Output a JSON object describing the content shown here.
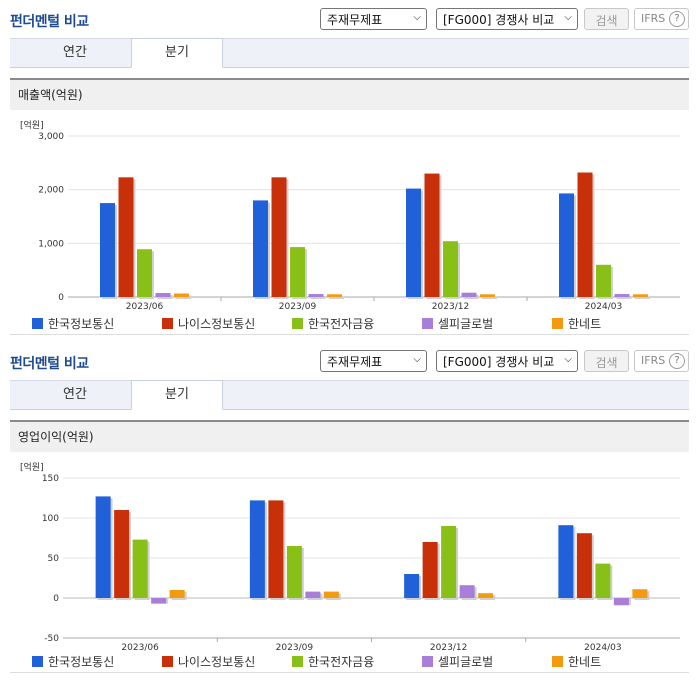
{
  "panels": [
    {
      "title": "펀더멘털 비교",
      "statement_select": "주재무제표",
      "compare_select": "[FG000] 경쟁사 비교",
      "search_label": "검색",
      "ifrs_label": "IFRS",
      "help_label": "?",
      "tabs": [
        "연간",
        "분기"
      ],
      "active_tab": "분기",
      "section_title": "매출액(억원)",
      "unit_label": "[억원]"
    },
    {
      "title": "펀더멘털 비교",
      "statement_select": "주재무제표",
      "compare_select": "[FG000] 경쟁사 비교",
      "search_label": "검색",
      "ifrs_label": "IFRS",
      "help_label": "?",
      "tabs": [
        "연간",
        "분기"
      ],
      "active_tab": "분기",
      "section_title": "영업이익(억원)",
      "unit_label": "[억원]"
    }
  ],
  "colors": {
    "series": [
      "#2060d8",
      "#c8300a",
      "#88c018",
      "#a87ed8",
      "#f39a10"
    ],
    "title": "#1e4b8f"
  },
  "chart_data": [
    {
      "type": "bar",
      "title": "매출액(억원)",
      "ylabel": "[억원]",
      "categories": [
        "2023/06",
        "2023/09",
        "2023/12",
        "2024/03"
      ],
      "yticks": [
        "0",
        "1,000",
        "2,000",
        "3,000"
      ],
      "ylim": [
        0,
        3000
      ],
      "legend": "bottom",
      "series": [
        {
          "name": "한국정보통신",
          "values": [
            1750,
            1800,
            2020,
            1930
          ]
        },
        {
          "name": "나이스정보통신",
          "values": [
            2230,
            2230,
            2300,
            2320
          ]
        },
        {
          "name": "한국전자금융",
          "values": [
            890,
            930,
            1040,
            600
          ]
        },
        {
          "name": "셀피글로벌",
          "values": [
            75,
            55,
            80,
            55
          ]
        },
        {
          "name": "한네트",
          "values": [
            65,
            50,
            50,
            50
          ]
        }
      ]
    },
    {
      "type": "bar",
      "title": "영업이익(억원)",
      "ylabel": "[억원]",
      "categories": [
        "2023/06",
        "2023/09",
        "2023/12",
        "2024/03"
      ],
      "yticks": [
        "-50",
        "0",
        "50",
        "100",
        "150"
      ],
      "ylim": [
        -50,
        150
      ],
      "legend": "bottom",
      "series": [
        {
          "name": "한국정보통신",
          "values": [
            127,
            122,
            30,
            91
          ]
        },
        {
          "name": "나이스정보통신",
          "values": [
            110,
            122,
            70,
            81
          ]
        },
        {
          "name": "한국전자금융",
          "values": [
            73,
            65,
            90,
            43
          ]
        },
        {
          "name": "셀피글로벌",
          "values": [
            -7,
            8,
            16,
            -9
          ]
        },
        {
          "name": "한네트",
          "values": [
            10,
            8,
            6,
            11
          ]
        }
      ]
    }
  ]
}
